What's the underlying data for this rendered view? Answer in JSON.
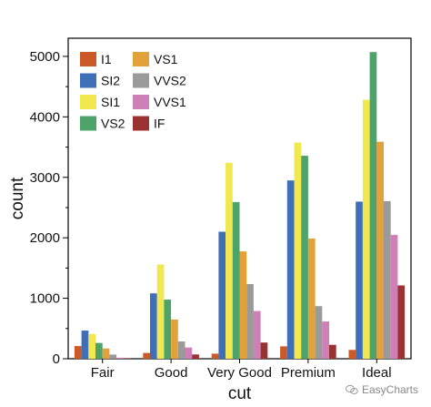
{
  "chart_data": {
    "type": "bar",
    "xlabel": "cut",
    "ylabel": "count",
    "categories": [
      "Fair",
      "Good",
      "Very Good",
      "Premium",
      "Ideal"
    ],
    "ylim": [
      0,
      5300
    ],
    "yticks": [
      0,
      1000,
      2000,
      3000,
      4000,
      5000
    ],
    "grid": false,
    "legend_position": "top-left",
    "series": [
      {
        "name": "I1",
        "color": "#cc5a28",
        "values": [
          210,
          96,
          84,
          205,
          146
        ]
      },
      {
        "name": "SI2",
        "color": "#3f6fb6",
        "values": [
          466,
          1081,
          2100,
          2949,
          2598
        ]
      },
      {
        "name": "SI1",
        "color": "#f0e84e",
        "values": [
          408,
          1560,
          3240,
          3575,
          4282
        ]
      },
      {
        "name": "VS2",
        "color": "#4ea36a",
        "values": [
          261,
          978,
          2591,
          3357,
          5071
        ]
      },
      {
        "name": "VS1",
        "color": "#e3a13a",
        "values": [
          170,
          648,
          1775,
          1989,
          3589
        ]
      },
      {
        "name": "VVS2",
        "color": "#9a9a9a",
        "values": [
          69,
          286,
          1235,
          870,
          2606
        ]
      },
      {
        "name": "VVS1",
        "color": "#d07fb6",
        "values": [
          17,
          186,
          789,
          616,
          2047
        ]
      },
      {
        "name": "IF",
        "color": "#9b3232",
        "values": [
          9,
          71,
          268,
          230,
          1212
        ]
      }
    ]
  },
  "watermark": {
    "text": "EasyCharts",
    "icon": "chat-bubble-icon"
  }
}
